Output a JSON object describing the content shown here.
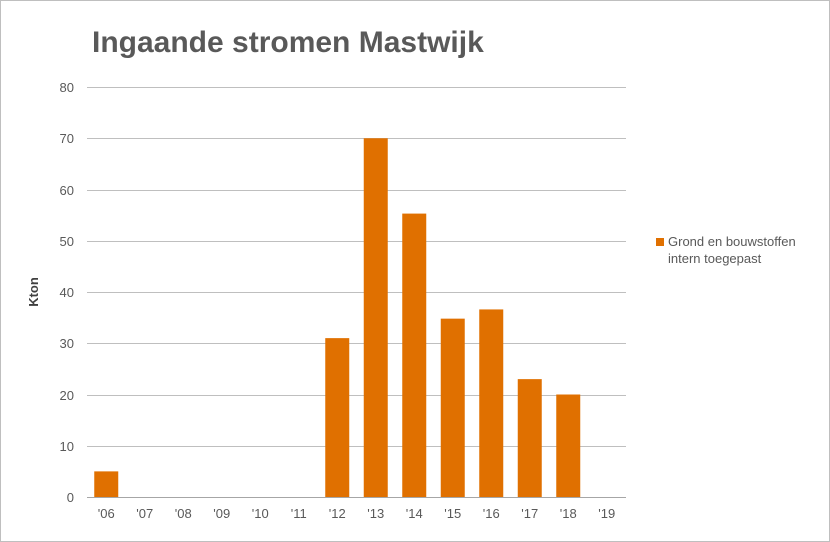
{
  "chart_data": {
    "type": "bar",
    "title": "Ingaande stromen Mastwijk",
    "ylabel": "Kton",
    "xlabel": "",
    "categories": [
      "'06",
      "'07",
      "'08",
      "'09",
      "'10",
      "'11",
      "'12",
      "'13",
      "'14",
      "'15",
      "'16",
      "'17",
      "'18",
      "'19"
    ],
    "series": [
      {
        "name": "Grond en bouwstoffen intern toegepast",
        "values": [
          5,
          0,
          0,
          0,
          0,
          0,
          31,
          70,
          55.3,
          34.8,
          36.6,
          23,
          20,
          0
        ],
        "color": "#e07000"
      }
    ],
    "ylim": [
      0,
      80
    ],
    "yticks": [
      0,
      10,
      20,
      30,
      40,
      50,
      60,
      70,
      80
    ],
    "grid": true,
    "legend_position": "right"
  }
}
